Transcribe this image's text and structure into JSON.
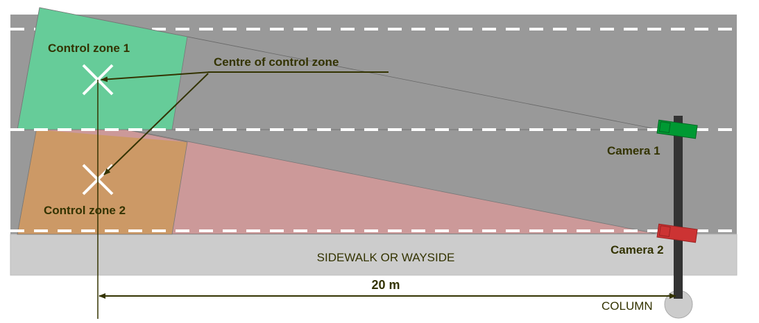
{
  "labels": {
    "zone1": "Control zone 1",
    "zone2": "Control zone 2",
    "centre": "Centre of control zone",
    "camera1": "Camera 1",
    "camera2": "Camera 2",
    "sidewalk": "SIDEWALK OR WAYSIDE",
    "distance": "20 m",
    "column": "COLUMN"
  },
  "colors": {
    "road": "#999999",
    "sidewalk": "#cccccc",
    "zone1": "#66cc99",
    "zone2": "#cc9966",
    "overlap": "#ffff99",
    "camera2_field": "#cc9999",
    "camera1": "#009933",
    "camera2": "#cc3333",
    "text": "#333300"
  }
}
